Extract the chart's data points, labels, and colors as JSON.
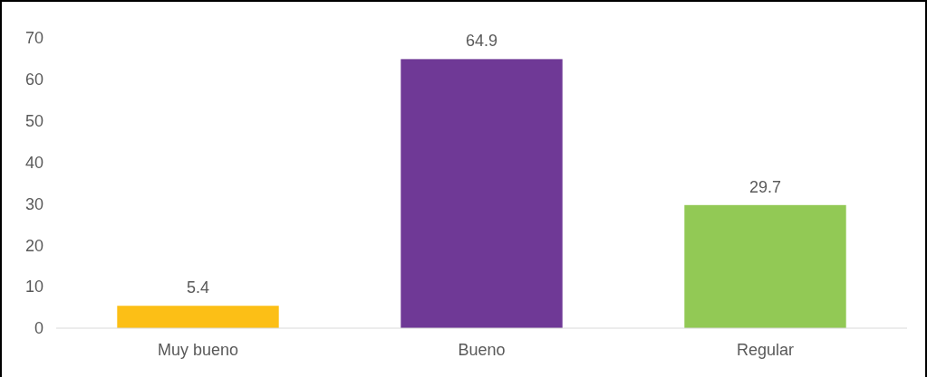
{
  "chart_data": {
    "type": "bar",
    "categories": [
      "Muy bueno",
      "Bueno",
      "Regular"
    ],
    "values": [
      5.4,
      64.9,
      29.7
    ],
    "colors": [
      "#fcbf16",
      "#6f3996",
      "#92c955"
    ],
    "ylim": [
      0,
      70
    ],
    "yticks": [
      0,
      10,
      20,
      30,
      40,
      50,
      60,
      70
    ],
    "grid": false,
    "data_labels": true
  }
}
